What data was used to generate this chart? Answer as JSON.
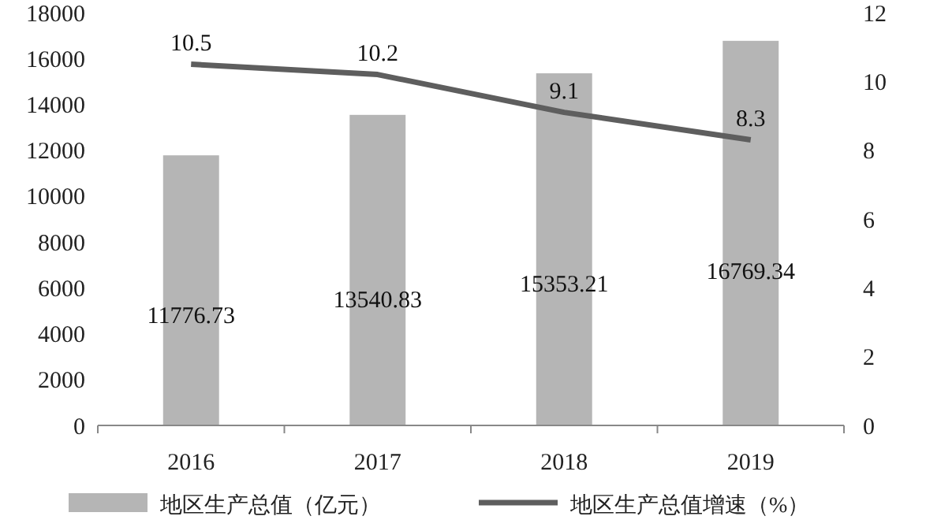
{
  "chart_data": {
    "type": "bar",
    "categories": [
      "2016",
      "2017",
      "2018",
      "2019"
    ],
    "series": [
      {
        "name": "地区生产总值（亿元）",
        "color": "#b5b5b5",
        "values": [
          11776.73,
          13540.83,
          15353.21,
          16769.34
        ]
      },
      {
        "name": "地区生产总值增速（%）",
        "type": "line",
        "axis": "y2",
        "color": "#5e5e5e",
        "values": [
          10.5,
          10.2,
          9.1,
          8.3
        ]
      }
    ],
    "ylim": [
      0,
      18000
    ],
    "yticks": [
      0,
      2000,
      4000,
      6000,
      8000,
      10000,
      12000,
      14000,
      16000,
      18000
    ],
    "y2lim": [
      0,
      12
    ],
    "y2ticks": [
      0,
      2,
      4,
      6,
      8,
      10,
      12
    ],
    "data_labels": true,
    "legend": "bottom",
    "grid": false,
    "marker": "none"
  }
}
